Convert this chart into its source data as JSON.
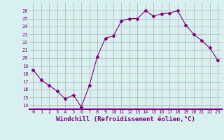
{
  "x": [
    0,
    1,
    2,
    3,
    4,
    5,
    6,
    7,
    8,
    9,
    10,
    11,
    12,
    13,
    14,
    15,
    16,
    17,
    18,
    19,
    20,
    21,
    22,
    23
  ],
  "y": [
    18.5,
    17.2,
    16.5,
    15.8,
    14.8,
    15.3,
    13.8,
    16.5,
    20.2,
    22.5,
    22.8,
    24.7,
    25.0,
    25.0,
    26.0,
    25.3,
    25.6,
    25.7,
    26.0,
    24.2,
    23.0,
    22.2,
    21.3,
    19.7
  ],
  "line_color": "#800080",
  "marker": "D",
  "marker_size": 2.5,
  "bg_color": "#d8f0f0",
  "grid_color": "#b0b0b0",
  "xlabel": "Windchill (Refroidissement éolien,°C)",
  "xlabel_color": "#800080",
  "separator_color": "#800080",
  "ylabel_ticks": [
    14,
    15,
    16,
    17,
    18,
    19,
    20,
    21,
    22,
    23,
    24,
    25,
    26
  ],
  "xlim": [
    -0.5,
    23.5
  ],
  "ylim": [
    13.5,
    27.0
  ],
  "xticks": [
    0,
    1,
    2,
    3,
    4,
    5,
    6,
    7,
    8,
    9,
    10,
    11,
    12,
    13,
    14,
    15,
    16,
    17,
    18,
    19,
    20,
    21,
    22,
    23
  ],
  "xtick_labels": [
    "0",
    "1",
    "2",
    "3",
    "4",
    "5",
    "6",
    "7",
    "8",
    "9",
    "10",
    "11",
    "12",
    "13",
    "14",
    "15",
    "16",
    "17",
    "18",
    "19",
    "20",
    "21",
    "22",
    "23"
  ],
  "tick_fontsize": 5.0,
  "xlabel_fontsize": 6.5
}
